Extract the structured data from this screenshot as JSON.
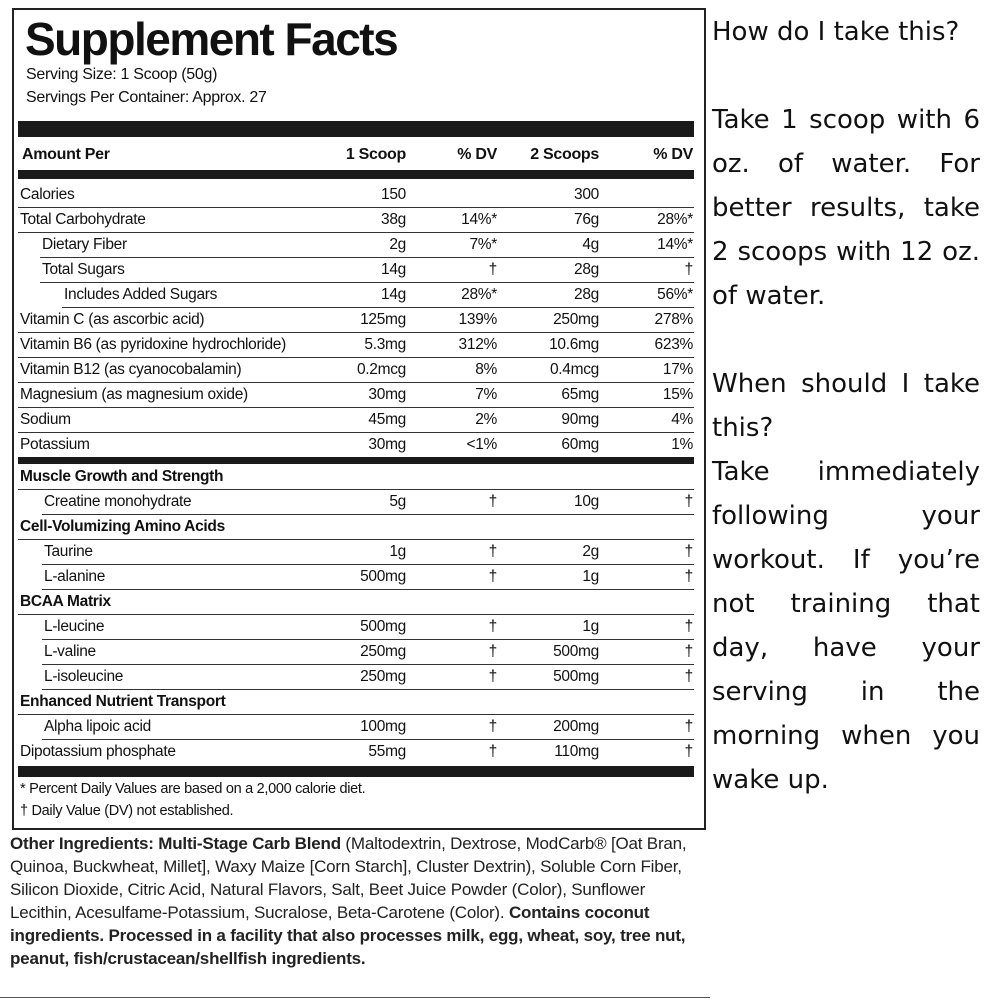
{
  "label": {
    "title": "Supplement Facts",
    "serving_size": "Serving Size: 1 Scoop (50g)",
    "servings_per_container": "Servings Per Container: Approx. 27",
    "columns": [
      "Amount Per",
      "1 Scoop",
      "% DV",
      "2 Scoops",
      "% DV"
    ],
    "nutrients": [
      {
        "name": "Calories",
        "amount1": "150",
        "amount2": "300"
      },
      {
        "name": "Total Carbohydrate",
        "amount1": "38g",
        "dv1": "14%*",
        "amount2": "76g",
        "dv2": "28%*"
      },
      {
        "name": "Dietary Fiber",
        "amount1": "2g",
        "dv1": "7%*",
        "amount2": "4g",
        "dv2": "14%*"
      },
      {
        "name": "Total Sugars",
        "amount1": "14g",
        "dv1": "†",
        "amount2": "28g",
        "dv2": "†"
      },
      {
        "name": "Includes Added Sugars",
        "amount1": "14g",
        "dv1": "28%*",
        "amount2": "28g",
        "dv2": "56%*"
      },
      {
        "name": "Vitamin C (as ascorbic acid)",
        "amount1": "125mg",
        "dv1": "139%",
        "amount2": "250mg",
        "dv2": "278%"
      },
      {
        "name": "Vitamin B6 (as pyridoxine hydrochloride)",
        "amount1": "5.3mg",
        "dv1": "312%",
        "amount2": "10.6mg",
        "dv2": "623%"
      },
      {
        "name": "Vitamin B12 (as cyanocobalamin)",
        "amount1": "0.2mcg",
        "dv1": "8%",
        "amount2": "0.4mcg",
        "dv2": "17%"
      },
      {
        "name": "Magnesium (as magnesium oxide)",
        "amount1": "30mg",
        "dv1": "7%",
        "amount2": "65mg",
        "dv2": "15%"
      },
      {
        "name": "Sodium",
        "amount1": "45mg",
        "dv1": "2%",
        "amount2": "90mg",
        "dv2": "4%"
      },
      {
        "name": "Potassium",
        "amount1": "30mg",
        "dv1": "<1%",
        "amount2": "60mg",
        "dv2": "1%"
      }
    ],
    "groups": [
      {
        "title": "Muscle Growth and Strength",
        "items": [
          {
            "name": "Creatine monohydrate",
            "amount1": "5g",
            "dv1": "†",
            "amount2": "10g",
            "dv2": "†"
          }
        ]
      },
      {
        "title": "Cell-Volumizing Amino Acids",
        "items": [
          {
            "name": "Taurine",
            "amount1": "1g",
            "dv1": "†",
            "amount2": "2g",
            "dv2": "†"
          },
          {
            "name": "L-alanine",
            "amount1": "500mg",
            "dv1": "†",
            "amount2": "1g",
            "dv2": "†"
          }
        ]
      },
      {
        "title": "BCAA Matrix",
        "items": [
          {
            "name": "L-leucine",
            "amount1": "500mg",
            "dv1": "†",
            "amount2": "1g",
            "dv2": "†"
          },
          {
            "name": "L-valine",
            "amount1": "250mg",
            "dv1": "†",
            "amount2": "500mg",
            "dv2": "†"
          },
          {
            "name": "L-isoleucine",
            "amount1": "250mg",
            "dv1": "†",
            "amount2": "500mg",
            "dv2": "†"
          }
        ]
      },
      {
        "title": "Enhanced Nutrient Transport",
        "items": [
          {
            "name": "Alpha lipoic acid",
            "amount1": "100mg",
            "dv1": "†",
            "amount2": "200mg",
            "dv2": "†"
          }
        ]
      },
      {
        "items": [
          {
            "name": "Dipotassium phosphate",
            "amount1": "55mg",
            "dv1": "†",
            "amount2": "110mg",
            "dv2": "†"
          }
        ]
      }
    ],
    "footnotes": [
      "* Percent Daily Values are based on a 2,000 calorie diet.",
      "† Daily Value (DV) not established."
    ]
  },
  "other_ingredients": {
    "label": "Other Ingredients:",
    "blend": "Multi-Stage Carb Blend",
    "list": "(Maltodextrin, Dextrose, ModCarb® [Oat Bran, Quinoa, Buckwheat, Millet], Waxy Maize [Corn Starch], Cluster Dextrin), Soluble Corn Fiber, Silicon Dioxide, Citric Acid, Natural Flavors, Salt, Beet Juice Powder (Color), Sunflower Lecithin, Acesulfame-Potassium, Sucralose, Beta-Carotene (Color).",
    "warning": "Contains coconut ingredients. Processed in a facility that also processes milk, egg, wheat, soy, tree nut, peanut, fish/crustacean/shellfish ingredients."
  },
  "faq": [
    {
      "question": "How do I take this?",
      "answer": "Take 1 scoop with 6 oz. of water. For better results, take 2 scoops with 12 oz. of water."
    },
    {
      "question": "When should I take this?",
      "answer": "Take immediately following your workout. If you’re not training that day, have your serving in the morning when you wake up."
    }
  ]
}
